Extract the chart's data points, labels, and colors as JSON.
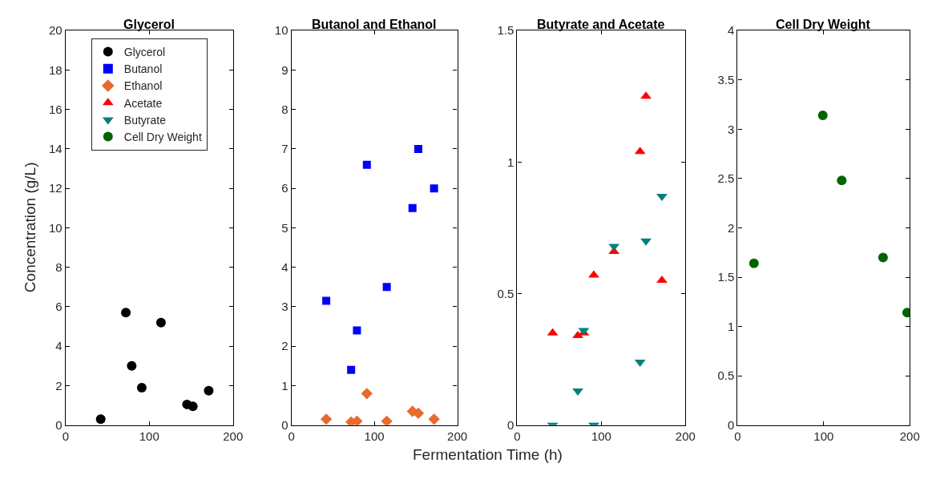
{
  "chart_data": [
    {
      "type": "scatter",
      "title": "Glycerol",
      "ylabel": "Concentration (g/L)",
      "xlim": [
        0,
        200
      ],
      "xticks": [
        0,
        100,
        200
      ],
      "ylim": [
        0,
        20
      ],
      "yticks": [
        0,
        2,
        4,
        6,
        8,
        10,
        12,
        14,
        16,
        18,
        20
      ],
      "legend": "top",
      "series": [
        {
          "name": "Glycerol",
          "color": "#000000",
          "marker": "circle",
          "x": [
            42,
            72,
            79,
            91,
            114,
            145,
            152,
            171
          ],
          "values": [
            0.3,
            5.7,
            3.0,
            1.9,
            5.2,
            1.05,
            0.95,
            1.75
          ]
        }
      ]
    },
    {
      "type": "scatter",
      "title": "Butanol and Ethanol",
      "xlabel": "Fermentation Time (h)",
      "xlim": [
        0,
        200
      ],
      "xticks": [
        0,
        100,
        200
      ],
      "ylim": [
        0,
        10
      ],
      "yticks": [
        0,
        1,
        2,
        3,
        4,
        5,
        6,
        7,
        8,
        9,
        10
      ],
      "legend": "top",
      "series": [
        {
          "name": "Butanol",
          "color": "#0000ff",
          "marker": "square",
          "x": [
            42,
            72,
            79,
            91,
            115,
            146,
            153,
            172
          ],
          "values": [
            3.15,
            1.4,
            2.4,
            6.6,
            3.5,
            5.5,
            7.0,
            6.0
          ]
        },
        {
          "name": "Ethanol",
          "color": "#e66b2e",
          "marker": "diamond",
          "x": [
            42,
            72,
            79,
            91,
            115,
            146,
            153,
            172
          ],
          "values": [
            0.15,
            0.08,
            0.1,
            0.8,
            0.1,
            0.35,
            0.3,
            0.15
          ]
        }
      ]
    },
    {
      "type": "scatter",
      "title": "Butyrate and Acetate",
      "xlim": [
        0,
        200
      ],
      "xticks": [
        0,
        100,
        200
      ],
      "ylim": [
        0,
        1.5
      ],
      "yticks": [
        0,
        0.5,
        1,
        1.5
      ],
      "legend": "top",
      "series": [
        {
          "name": "Acetate",
          "color": "#ff0000",
          "marker": "triangle",
          "x": [
            42,
            72,
            79,
            91,
            115,
            146,
            153,
            172
          ],
          "values": [
            0.35,
            0.34,
            0.35,
            0.57,
            0.66,
            1.04,
            1.25,
            0.55
          ]
        },
        {
          "name": "Butyrate",
          "color": "#008080",
          "marker": "triangle-down",
          "x": [
            42,
            72,
            79,
            91,
            115,
            146,
            153,
            172
          ],
          "values": [
            0.0,
            0.13,
            0.36,
            0.0,
            0.68,
            0.24,
            0.7,
            0.87
          ]
        }
      ]
    },
    {
      "type": "scatter",
      "title": "Cell Dry Weight",
      "xlim": [
        0,
        200
      ],
      "xticks": [
        0,
        100,
        200
      ],
      "ylim": [
        0,
        4
      ],
      "yticks": [
        0,
        0.5,
        1,
        1.5,
        2,
        2.5,
        3,
        3.5,
        4
      ],
      "legend": "top",
      "series": [
        {
          "name": "Cell Dry Weight",
          "color": "#006400",
          "marker": "circle",
          "x": [
            19,
            99,
            121,
            169,
            197
          ],
          "values": [
            1.64,
            3.14,
            2.48,
            1.7,
            1.14
          ]
        }
      ]
    }
  ]
}
